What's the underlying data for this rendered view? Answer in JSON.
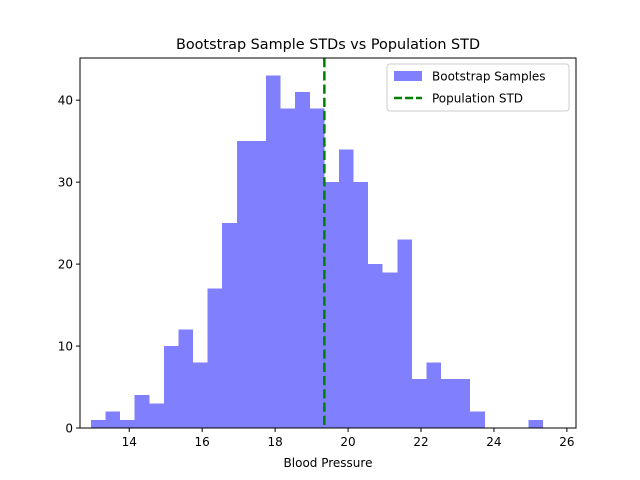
{
  "chart_data": {
    "type": "bar",
    "title": "Bootstrap Sample STDs vs Population STD",
    "xlabel": "Blood Pressure",
    "ylabel": "",
    "xlim": [
      12.65,
      26.25
    ],
    "ylim": [
      0,
      45.15
    ],
    "bin_start": 12.95,
    "bin_width": 0.4,
    "values": [
      1,
      2,
      1,
      4,
      3,
      10,
      12,
      8,
      17,
      25,
      35,
      35,
      43,
      39,
      41,
      39,
      30,
      34,
      30,
      20,
      19,
      23,
      6,
      8,
      6,
      6,
      2,
      0,
      0,
      0,
      1
    ],
    "bar_color": "#8080ff",
    "population_std": 19.35,
    "reference_line_color": "#008000",
    "x_ticks": [
      14,
      16,
      18,
      20,
      22,
      24,
      26
    ],
    "y_ticks": [
      0,
      10,
      20,
      30,
      40
    ],
    "grid": false,
    "legend_position": "top-right",
    "legend": [
      {
        "label": "Bootstrap Samples",
        "kind": "patch",
        "color": "#8080ff"
      },
      {
        "label": "Population STD",
        "kind": "dashed-line",
        "color": "#008000"
      }
    ]
  }
}
